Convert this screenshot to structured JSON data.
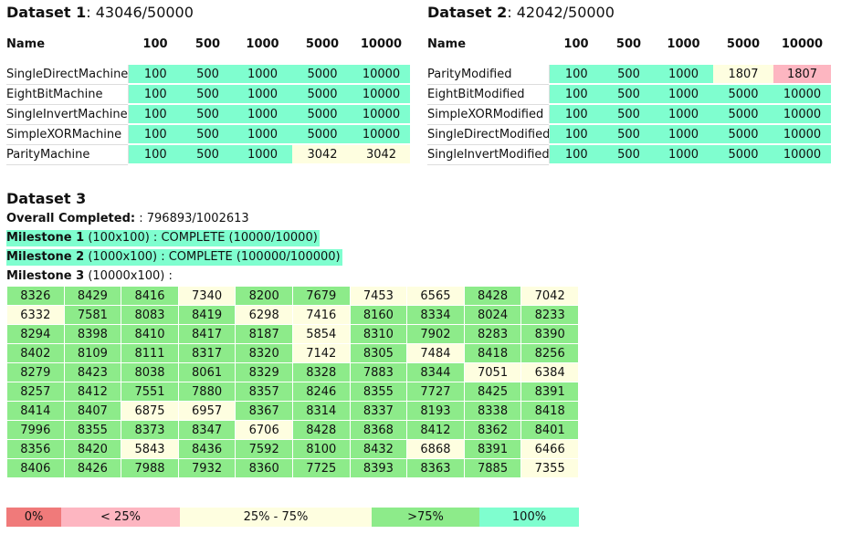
{
  "dataset1": {
    "title_bold": "Dataset 1",
    "title_rest": ": 43046/50000",
    "header": [
      "Name",
      "100",
      "500",
      "1000",
      "5000",
      "10000"
    ],
    "rows": [
      {
        "name": "SingleDirectMachine",
        "values": [
          "100",
          "500",
          "1000",
          "5000",
          "10000"
        ],
        "status": [
          "full",
          "full",
          "full",
          "full",
          "full"
        ]
      },
      {
        "name": "EightBitMachine",
        "values": [
          "100",
          "500",
          "1000",
          "5000",
          "10000"
        ],
        "status": [
          "full",
          "full",
          "full",
          "full",
          "full"
        ]
      },
      {
        "name": "SingleInvertMachine",
        "values": [
          "100",
          "500",
          "1000",
          "5000",
          "10000"
        ],
        "status": [
          "full",
          "full",
          "full",
          "full",
          "full"
        ]
      },
      {
        "name": "SimpleXORMachine",
        "values": [
          "100",
          "500",
          "1000",
          "5000",
          "10000"
        ],
        "status": [
          "full",
          "full",
          "full",
          "full",
          "full"
        ]
      },
      {
        "name": "ParityMachine",
        "values": [
          "100",
          "500",
          "1000",
          "3042",
          "3042"
        ],
        "status": [
          "full",
          "full",
          "full",
          "mid",
          "mid"
        ]
      }
    ]
  },
  "dataset2": {
    "title_bold": "Dataset 2",
    "title_rest": ": 42042/50000",
    "header": [
      "Name",
      "100",
      "500",
      "1000",
      "5000",
      "10000"
    ],
    "rows": [
      {
        "name": "ParityModified",
        "values": [
          "100",
          "500",
          "1000",
          "1807",
          "1807"
        ],
        "status": [
          "full",
          "full",
          "full",
          "mid",
          "low"
        ]
      },
      {
        "name": "EightBitModified",
        "values": [
          "100",
          "500",
          "1000",
          "5000",
          "10000"
        ],
        "status": [
          "full",
          "full",
          "full",
          "full",
          "full"
        ]
      },
      {
        "name": "SimpleXORModified",
        "values": [
          "100",
          "500",
          "1000",
          "5000",
          "10000"
        ],
        "status": [
          "full",
          "full",
          "full",
          "full",
          "full"
        ]
      },
      {
        "name": "SingleDirectModified",
        "values": [
          "100",
          "500",
          "1000",
          "5000",
          "10000"
        ],
        "status": [
          "full",
          "full",
          "full",
          "full",
          "full"
        ]
      },
      {
        "name": "SingleInvertModified",
        "values": [
          "100",
          "500",
          "1000",
          "5000",
          "10000"
        ],
        "status": [
          "full",
          "full",
          "full",
          "full",
          "full"
        ]
      }
    ]
  },
  "dataset3": {
    "title": "Dataset 3",
    "overall_label": "Overall Completed:",
    "overall_value": ": 796893/1002613",
    "milestone1_label": "Milestone 1",
    "milestone1_text": " (100x100) : COMPLETE (10000/10000)",
    "milestone2_label": "Milestone 2",
    "milestone2_text": " (1000x100) : COMPLETE (100000/100000)",
    "milestone3_label": "Milestone 3",
    "milestone3_text": " (10000x100) :",
    "grid": [
      [
        8326,
        8429,
        8416,
        7340,
        8200,
        7679,
        7453,
        6565,
        8428,
        7042
      ],
      [
        6332,
        7581,
        8083,
        8419,
        6298,
        7416,
        8160,
        8334,
        8024,
        8233
      ],
      [
        8294,
        8398,
        8410,
        8417,
        8187,
        5854,
        8310,
        7902,
        8283,
        8390
      ],
      [
        8402,
        8109,
        8111,
        8317,
        8320,
        7142,
        8305,
        7484,
        8418,
        8256
      ],
      [
        8279,
        8423,
        8038,
        8061,
        8329,
        8328,
        7883,
        8344,
        7051,
        6384
      ],
      [
        8257,
        8412,
        7551,
        7880,
        8357,
        8246,
        8355,
        7727,
        8425,
        8391
      ],
      [
        8414,
        8407,
        6875,
        6957,
        8367,
        8314,
        8337,
        8193,
        8338,
        8418
      ],
      [
        7996,
        8355,
        8373,
        8347,
        6706,
        8428,
        8368,
        8412,
        8362,
        8401
      ],
      [
        8356,
        8420,
        5843,
        8436,
        7592,
        8100,
        8432,
        6868,
        8391,
        6466
      ],
      [
        8406,
        8426,
        7988,
        7932,
        8360,
        7725,
        8393,
        8363,
        7885,
        7355
      ]
    ],
    "grid_total": 10000
  },
  "legend": [
    {
      "label": "0%",
      "color": "#f07a7a"
    },
    {
      "label": "< 25%",
      "color": "#fdb6c1"
    },
    {
      "label": "25% - 75%",
      "color": "#fefee0"
    },
    {
      "label": ">75%",
      "color": "#8deb8a"
    },
    {
      "label": "100%",
      "color": "#7ffecf"
    }
  ]
}
